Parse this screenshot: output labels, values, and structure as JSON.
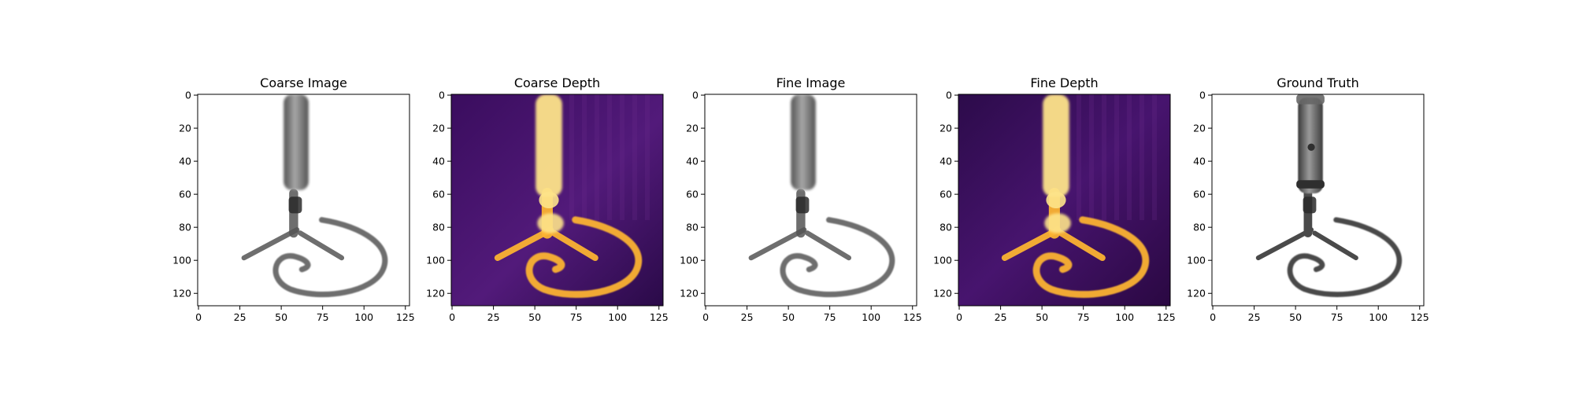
{
  "figure": {
    "panels": [
      {
        "title": "Coarse Image",
        "kind": "image",
        "xticks": [
          "0",
          "25",
          "50",
          "75",
          "100",
          "125"
        ],
        "yticks": [
          "0",
          "20",
          "40",
          "60",
          "80",
          "100",
          "120"
        ]
      },
      {
        "title": "Coarse Depth",
        "kind": "depth",
        "xticks": [
          "0",
          "25",
          "50",
          "75",
          "100",
          "125"
        ],
        "yticks": [
          "0",
          "20",
          "40",
          "60",
          "80",
          "100",
          "120"
        ]
      },
      {
        "title": "Fine Image",
        "kind": "image",
        "xticks": [
          "0",
          "25",
          "50",
          "75",
          "100",
          "125"
        ],
        "yticks": [
          "0",
          "20",
          "40",
          "60",
          "80",
          "100",
          "120"
        ]
      },
      {
        "title": "Fine Depth",
        "kind": "depth",
        "xticks": [
          "0",
          "25",
          "50",
          "75",
          "100",
          "125"
        ],
        "yticks": [
          "0",
          "20",
          "40",
          "60",
          "80",
          "100",
          "120"
        ]
      },
      {
        "title": "Ground Truth",
        "kind": "gt",
        "xticks": [
          "0",
          "25",
          "50",
          "75",
          "100",
          "125"
        ],
        "yticks": [
          "0",
          "20",
          "40",
          "60",
          "80",
          "100",
          "120"
        ]
      }
    ],
    "colors": {
      "depth_background": "#3a0d5e",
      "depth_object": "#fbb232",
      "depth_core": "#fde38a",
      "object_gray": "#5c5c5c",
      "object_dark": "#2a2a2a"
    }
  }
}
